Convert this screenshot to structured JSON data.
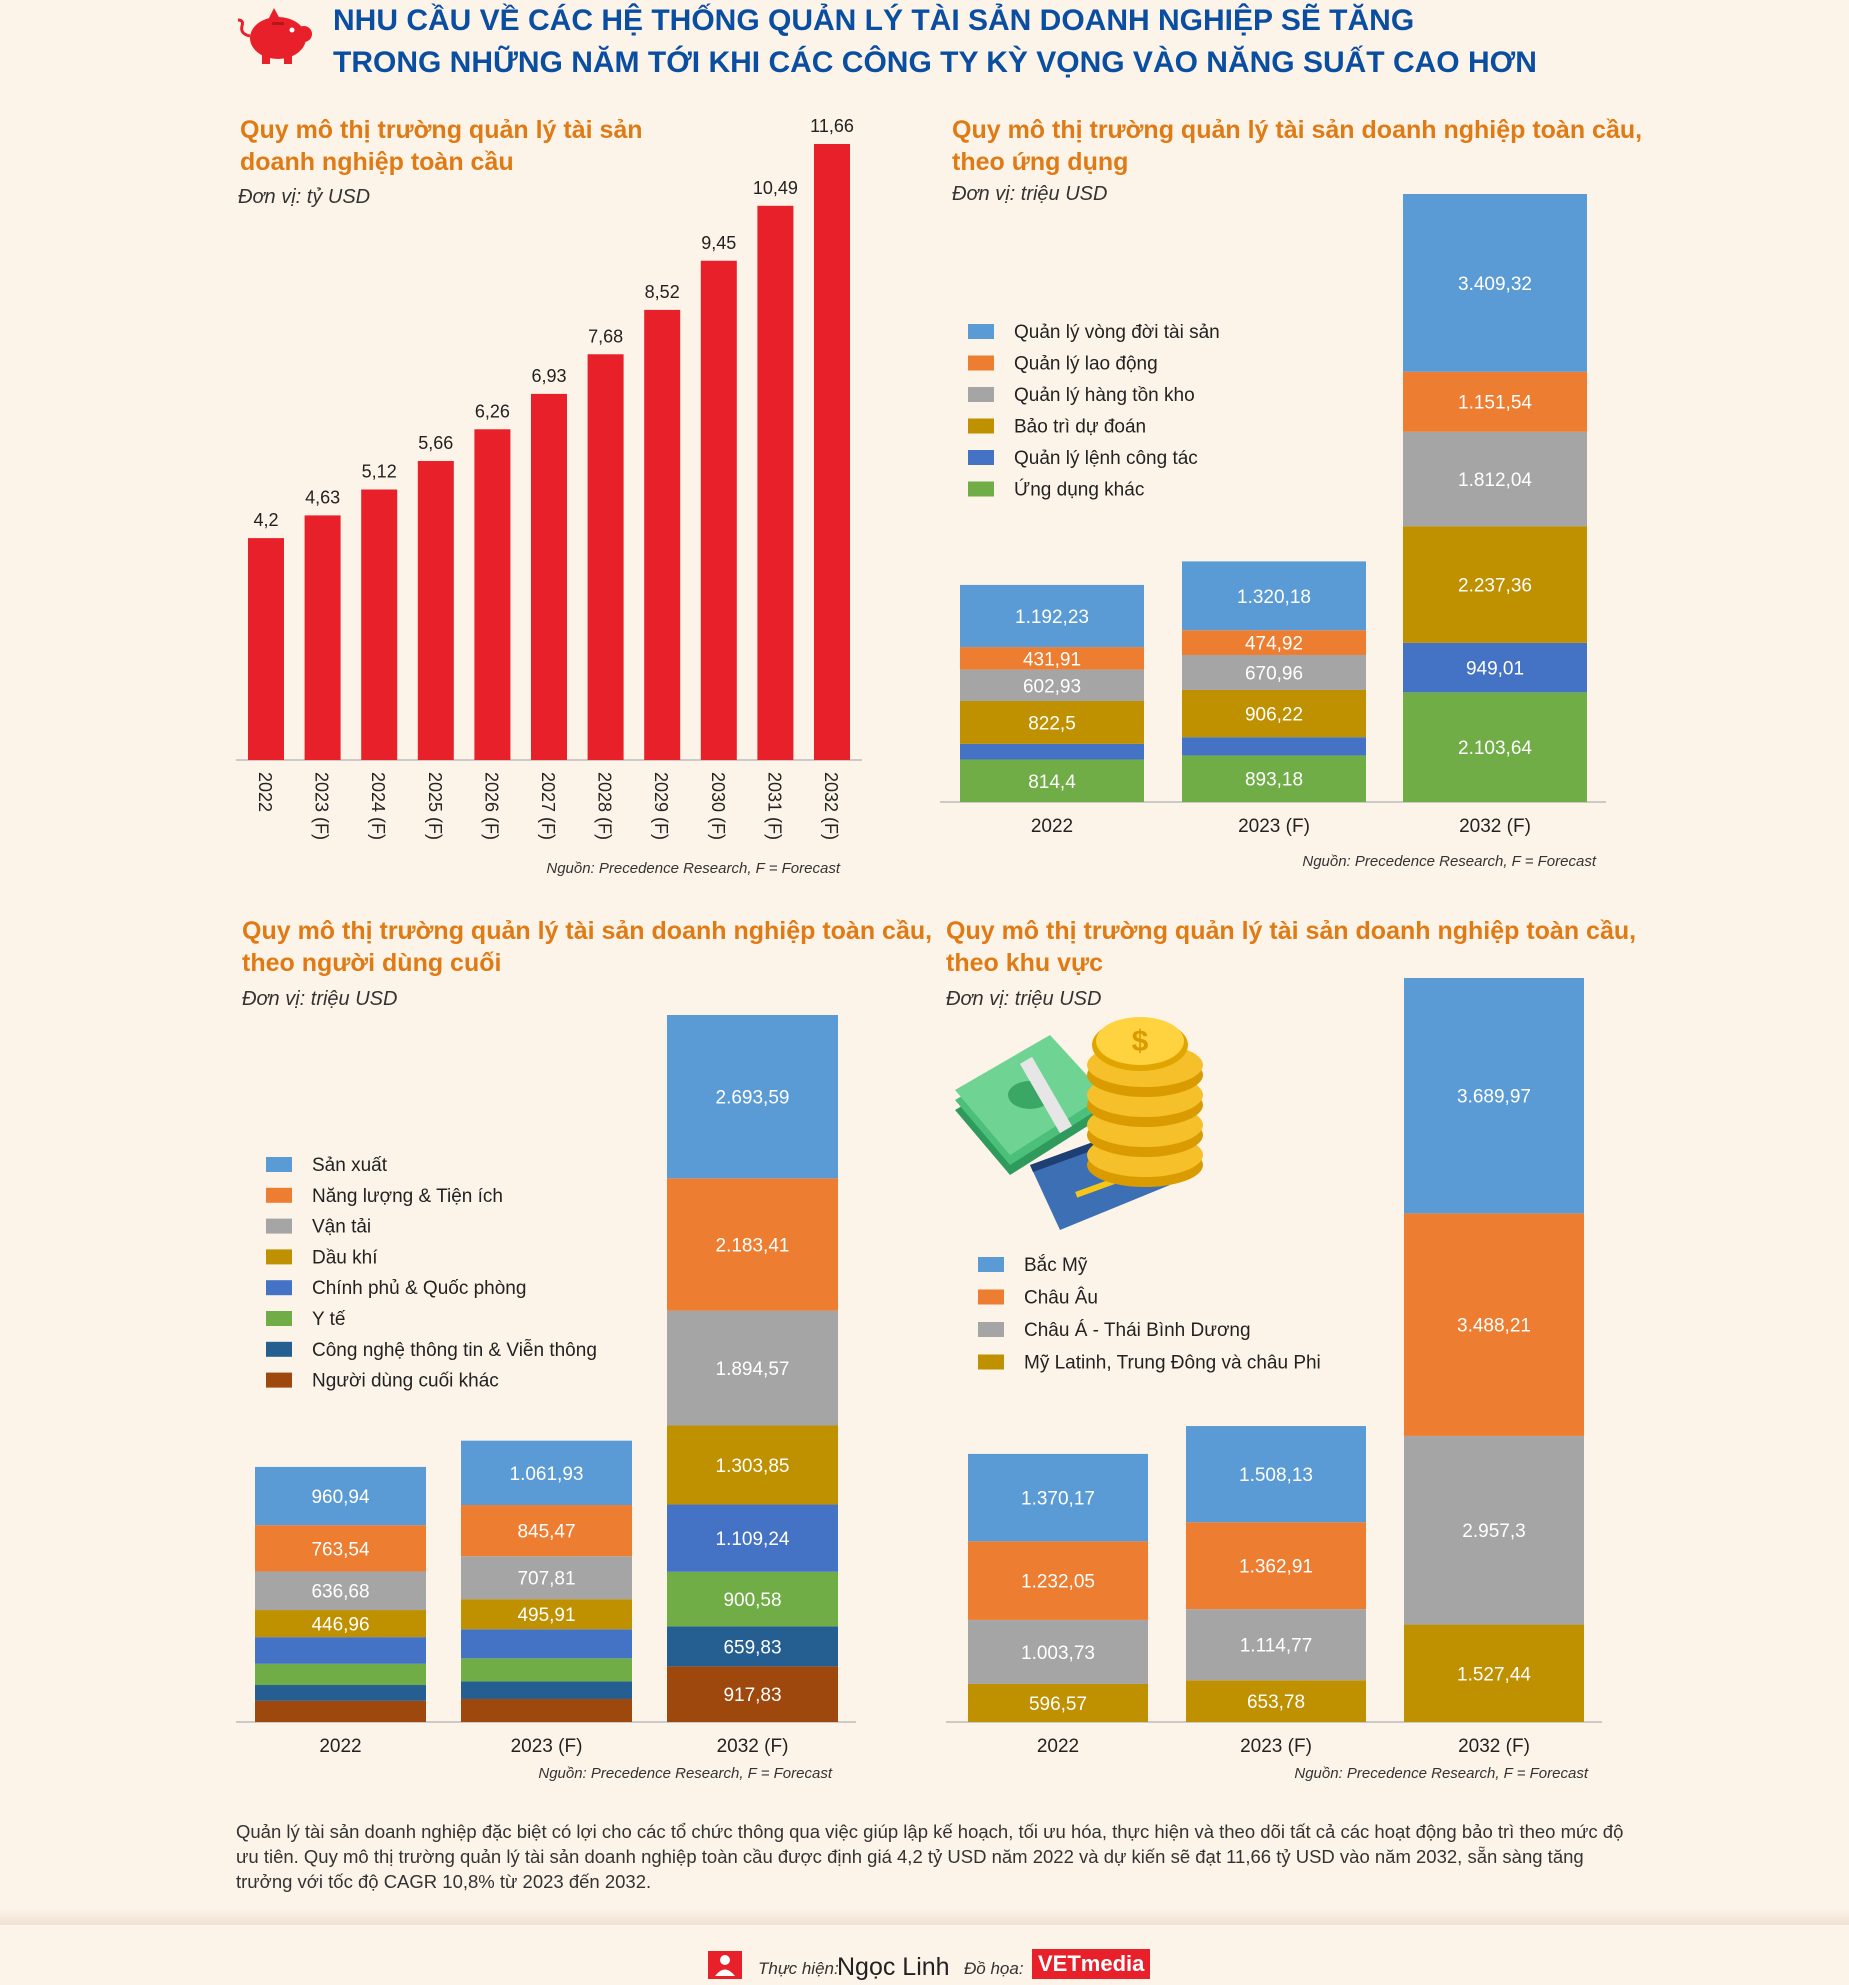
{
  "header": {
    "title_line1": "NHU CẦU VỀ CÁC HỆ THỐNG QUẢN LÝ TÀI SẢN DOANH NGHIỆP SẼ TĂNG",
    "title_line2": "TRONG NHỮNG NĂM TỚI KHI CÁC CÔNG TY KỲ VỌNG VÀO NĂNG SUẤT CAO HƠN",
    "icon": "piggy-bank-icon",
    "accent_color": "#e8202a",
    "title_color": "#0a4ea1"
  },
  "charts": [
    {
      "title_line1": "Quy mô thị trường quản lý tài sản",
      "title_line2": "doanh nghiệp toàn cầu",
      "unit": "Đơn vị: tỷ USD",
      "source": "Nguồn: Precedence Research, F = Forecast"
    },
    {
      "title_line1": "Quy mô thị trường quản lý tài sản doanh nghiệp toàn cầu,",
      "title_line2": "theo ứng dụng",
      "unit": "Đơn vị: triệu USD",
      "source": "Nguồn: Precedence Research, F = Forecast"
    },
    {
      "title_line1": "Quy mô thị trường quản lý tài sản doanh nghiệp toàn cầu,",
      "title_line2": "theo người dùng cuối",
      "unit": "Đơn vị: triệu USD",
      "source": "Nguồn: Precedence Research, F = Forecast"
    },
    {
      "title_line1": "Quy mô thị trường quản lý tài sản doanh nghiệp toàn cầu,",
      "title_line2": "theo khu vực",
      "unit": "Đơn vị: triệu USD",
      "source": "Nguồn: Precedence Research, F = Forecast",
      "illustration": "money-coins-card-icon"
    }
  ],
  "chart_data": [
    {
      "type": "bar",
      "categories": [
        "2022",
        "2023 (F)",
        "2024 (F)",
        "2025 (F)",
        "2026 (F)",
        "2027 (F)",
        "2028 (F)",
        "2029 (F)",
        "2030 (F)",
        "2031 (F)",
        "2032 (F)"
      ],
      "values": [
        4.2,
        4.63,
        5.12,
        5.66,
        6.26,
        6.93,
        7.68,
        8.52,
        9.45,
        10.49,
        11.66
      ],
      "labels": [
        "4,2",
        "4,63",
        "5,12",
        "5,66",
        "6,26",
        "6,93",
        "7,68",
        "8,52",
        "9,45",
        "10,49",
        "11,66"
      ],
      "color": "#e8202a",
      "ylim": [
        0,
        11.66
      ]
    },
    {
      "type": "bar",
      "stacked": true,
      "categories": [
        "2022",
        "2023 (F)",
        "2032 (F)"
      ],
      "series": [
        {
          "name": "Ứng dụng khác",
          "color": "#70ad47",
          "values": [
            814.4,
            893.18,
            2103.64
          ],
          "labels": [
            "814,4",
            "893,18",
            "2.103,64"
          ]
        },
        {
          "name": "Quản lý lệnh công tác",
          "color": "#4472c4",
          "values": [
            300,
            350,
            949.01
          ],
          "labels": [
            "",
            "",
            "949,01"
          ]
        },
        {
          "name": "Bảo trì dự đoán",
          "color": "#bf9000",
          "values": [
            822.5,
            906.22,
            2237.36
          ],
          "labels": [
            "822,5",
            "906,22",
            "2.237,36"
          ]
        },
        {
          "name": "Quản lý hàng tồn kho",
          "color": "#a5a5a5",
          "values": [
            602.93,
            670.96,
            1812.04
          ],
          "labels": [
            "602,93",
            "670,96",
            "1.812,04"
          ]
        },
        {
          "name": "Quản lý lao động",
          "color": "#ed7d31",
          "values": [
            431.91,
            474.92,
            1151.54
          ],
          "labels": [
            "431,91",
            "474,92",
            "1.151,54"
          ]
        },
        {
          "name": "Quản lý vòng đời tài sản",
          "color": "#5b9bd5",
          "values": [
            1192.23,
            1320.18,
            3409.32
          ],
          "labels": [
            "1.192,23",
            "1.320,18",
            "3.409,32"
          ]
        }
      ],
      "legend_order": [
        "Quản lý vòng đời tài sản",
        "Quản lý lao động",
        "Quản lý hàng tồn kho",
        "Bảo trì dự đoán",
        "Quản lý lệnh công tác",
        "Ứng dụng khác"
      ],
      "legend": "left"
    },
    {
      "type": "bar",
      "stacked": true,
      "categories": [
        "2022",
        "2023 (F)",
        "2032 (F)"
      ],
      "series": [
        {
          "name": "Người dùng cuối khác",
          "color": "#9e480e",
          "values": [
            350,
            380,
            917.83
          ],
          "labels": [
            "",
            "",
            "917,83"
          ]
        },
        {
          "name": "Công nghệ thông tin & Viễn thông",
          "color": "#255e91",
          "values": [
            260,
            290,
            659.83
          ],
          "labels": [
            "",
            "",
            "659,83"
          ]
        },
        {
          "name": "Y tế",
          "color": "#70ad47",
          "values": [
            350,
            380,
            900.58
          ],
          "labels": [
            "",
            "",
            "900,58"
          ]
        },
        {
          "name": "Chính phủ & Quốc phòng",
          "color": "#4472c4",
          "values": [
            440,
            480,
            1109.24
          ],
          "labels": [
            "",
            "",
            "1.109,24"
          ]
        },
        {
          "name": "Dầu khí",
          "color": "#bf9000",
          "values": [
            446.96,
            495.91,
            1303.85
          ],
          "labels": [
            "446,96",
            "495,91",
            "1.303,85"
          ]
        },
        {
          "name": "Vận tải",
          "color": "#a5a5a5",
          "values": [
            636.68,
            707.81,
            1894.57
          ],
          "labels": [
            "636,68",
            "707,81",
            "1.894,57"
          ]
        },
        {
          "name": "Năng lượng & Tiện ích",
          "color": "#ed7d31",
          "values": [
            763.54,
            845.47,
            2183.41
          ],
          "labels": [
            "763,54",
            "845,47",
            "2.183,41"
          ]
        },
        {
          "name": "Sản xuất",
          "color": "#5b9bd5",
          "values": [
            960.94,
            1061.93,
            2693.59
          ],
          "labels": [
            "960,94",
            "1.061,93",
            "2.693,59"
          ]
        }
      ],
      "legend_order": [
        "Sản xuất",
        "Năng lượng & Tiện ích",
        "Vận tải",
        "Dầu khí",
        "Chính phủ & Quốc phòng",
        "Y tế",
        "Công nghệ thông tin & Viễn thông",
        "Người dùng cuối khác"
      ],
      "legend": "left"
    },
    {
      "type": "bar",
      "stacked": true,
      "categories": [
        "2022",
        "2023 (F)",
        "2032 (F)"
      ],
      "series": [
        {
          "name": "Mỹ Latinh, Trung Đông và châu Phi",
          "color": "#bf9000",
          "values": [
            596.57,
            653.78,
            1527.44
          ],
          "labels": [
            "596,57",
            "653,78",
            "1.527,44"
          ]
        },
        {
          "name": "Châu Á - Thái Bình Dương",
          "color": "#a5a5a5",
          "values": [
            1003.73,
            1114.77,
            2957.3
          ],
          "labels": [
            "1.003,73",
            "1.114,77",
            "2.957,3"
          ]
        },
        {
          "name": "Châu Âu",
          "color": "#ed7d31",
          "values": [
            1232.05,
            1362.91,
            3488.21
          ],
          "labels": [
            "1.232,05",
            "1.362,91",
            "3.488,21"
          ]
        },
        {
          "name": "Bắc Mỹ",
          "color": "#5b9bd5",
          "values": [
            1370.17,
            1508.13,
            3689.97
          ],
          "labels": [
            "1.370,17",
            "1.508,13",
            "3.689,97"
          ]
        }
      ],
      "legend_order": [
        "Bắc Mỹ",
        "Châu Âu",
        "Châu Á - Thái Bình Dương",
        "Mỹ Latinh, Trung Đông và châu Phi"
      ],
      "legend": "left"
    }
  ],
  "body": {
    "paragraph": "Quản lý tài sản doanh nghiệp đặc biệt có lợi cho các tổ chức thông qua việc giúp lập kế hoạch, tối ưu hóa, thực hiện và theo dõi tất cả các hoạt động bảo trì theo mức độ ưu tiên. Quy mô thị trường quản lý tài sản doanh nghiệp toàn cầu được định giá 4,2 tỷ USD năm 2022 và dự kiến sẽ đạt 11,66 tỷ USD vào năm 2032, sẵn sàng tăng trưởng với  tốc độ CAGR 10,8% từ 2023 đến 2032."
  },
  "footer": {
    "author_label": "Thực hiện:",
    "author": "Ngọc Linh",
    "graphics_label": "Đồ họa:",
    "brand": "VETmedia",
    "author_icon": "person-icon",
    "brand_color": "#e8202a"
  }
}
